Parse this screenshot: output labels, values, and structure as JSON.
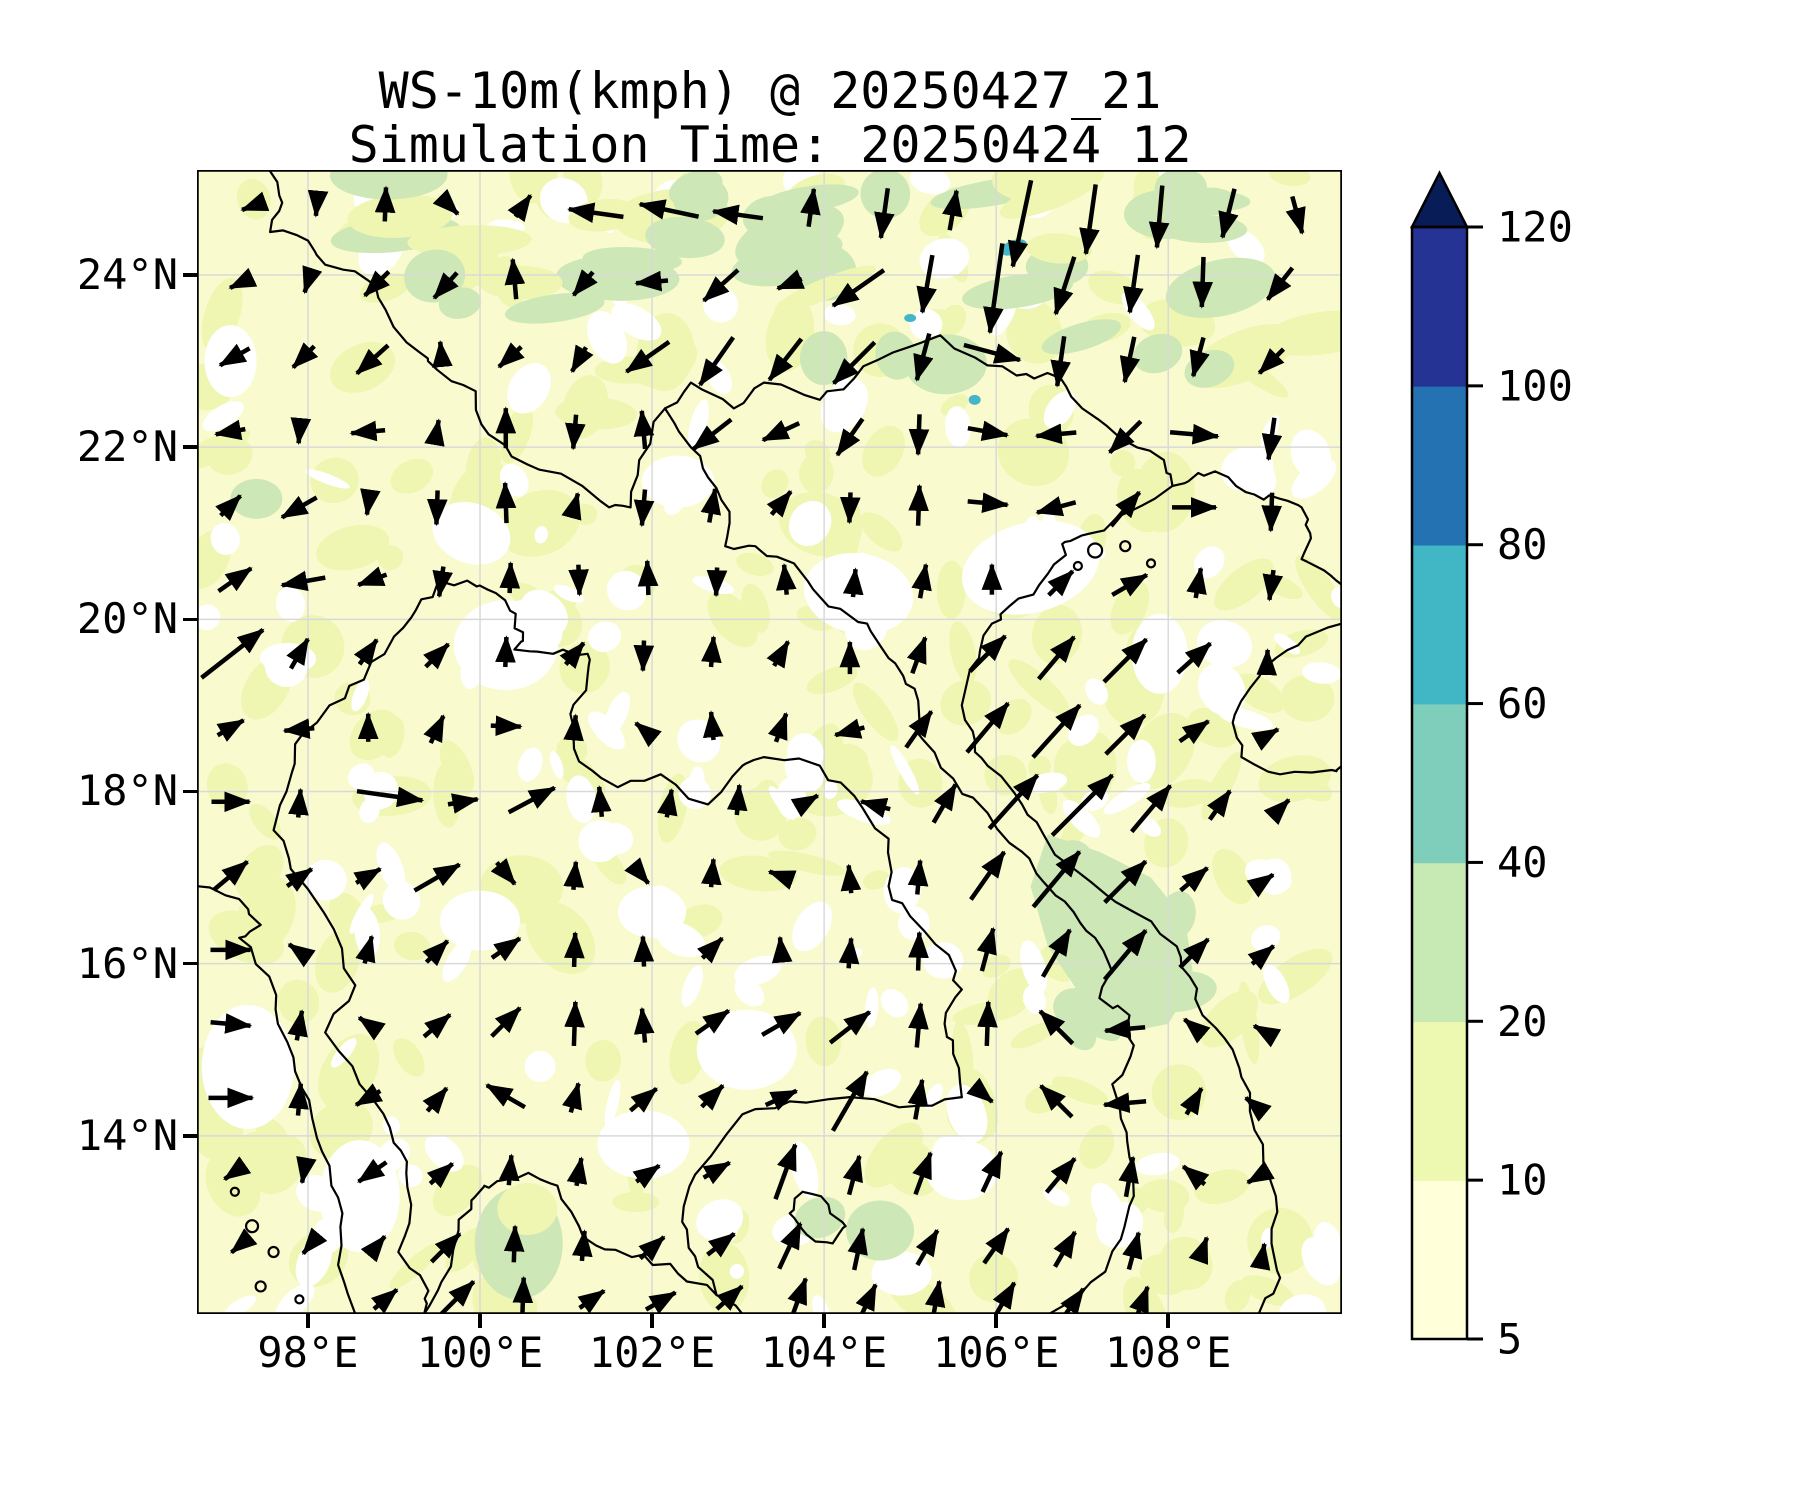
{
  "title": {
    "line1": "WS-10m(kmph) @ 20250427_21",
    "line2": "Simulation Time: 20250424_12"
  },
  "axes": {
    "x_ticks": [
      {
        "lon": 98,
        "label": "98°E"
      },
      {
        "lon": 100,
        "label": "100°E"
      },
      {
        "lon": 102,
        "label": "102°E"
      },
      {
        "lon": 104,
        "label": "104°E"
      },
      {
        "lon": 106,
        "label": "106°E"
      },
      {
        "lon": 108,
        "label": "108°E"
      }
    ],
    "y_ticks": [
      {
        "lat": 24,
        "label": "24°N"
      },
      {
        "lat": 22,
        "label": "22°N"
      },
      {
        "lat": 20,
        "label": "20°N"
      },
      {
        "lat": 18,
        "label": "18°N"
      },
      {
        "lat": 16,
        "label": "16°N"
      },
      {
        "lat": 14,
        "label": "14°N"
      }
    ]
  },
  "colorbar": {
    "tick_labels": [
      "5",
      "10",
      "20",
      "40",
      "60",
      "80",
      "100",
      "120"
    ],
    "levels": [
      5,
      10,
      20,
      40,
      60,
      80,
      100,
      120
    ],
    "segment_colors": [
      "#ffffd9",
      "#edf8b1",
      "#c7e9b4",
      "#7fcdbb",
      "#41b6c4",
      "#2472b2",
      "#253494"
    ],
    "extend_max_color": "#081d58"
  },
  "chart_data": {
    "type": "quiver_map",
    "variable": "WS-10m",
    "units": "kmph",
    "valid_time": "20250427_21",
    "simulation_time": "20250424_12",
    "title": "WS-10m(kmph) @ 20250427_21",
    "subtitle": "Simulation Time: 20250424_12",
    "lon_range": [
      96.71,
      110.02
    ],
    "lat_range": [
      11.93,
      25.22
    ],
    "grid": true,
    "fill_levels": [
      5,
      10,
      20,
      40,
      60,
      80,
      100,
      120
    ],
    "fill_colors": [
      "#ffffd9",
      "#edf8b1",
      "#c7e9b4",
      "#7fcdbb",
      "#41b6c4",
      "#2472b2",
      "#253494"
    ],
    "fill_palette": {
      "below_5": "#ffffff",
      "base_5_10": "#f9fbce",
      "tint_10_20": "#eef6b2",
      "green_20_40": "#cde7b6",
      "lake_cyan": "#45b5c8"
    },
    "arrow_color": "#000000",
    "border_color": "#000000",
    "grid_color": "#d9d9d9",
    "arrows_format": "[lon, lat, direction_deg(0=E,90=N,ccw), shaft_length_px]",
    "arrows": [
      [
        97.3,
        24.78,
        200,
        12
      ],
      [
        98.1,
        24.78,
        265,
        16
      ],
      [
        98.9,
        24.82,
        88,
        34
      ],
      [
        99.7,
        24.75,
        315,
        10
      ],
      [
        100.5,
        24.8,
        55,
        26
      ],
      [
        101.35,
        24.72,
        172,
        55
      ],
      [
        102.2,
        24.75,
        168,
        60
      ],
      [
        103.0,
        24.7,
        172,
        50
      ],
      [
        103.85,
        24.78,
        82,
        38
      ],
      [
        104.7,
        24.72,
        262,
        50
      ],
      [
        105.5,
        24.75,
        80,
        40
      ],
      [
        106.3,
        24.6,
        258,
        88
      ],
      [
        107.1,
        24.65,
        262,
        70
      ],
      [
        107.9,
        24.68,
        265,
        62
      ],
      [
        108.7,
        24.72,
        256,
        50
      ],
      [
        109.5,
        24.7,
        285,
        38
      ],
      [
        97.2,
        23.9,
        205,
        20
      ],
      [
        98.0,
        23.92,
        252,
        22
      ],
      [
        98.8,
        23.9,
        225,
        34
      ],
      [
        99.6,
        23.88,
        228,
        34
      ],
      [
        100.4,
        23.95,
        95,
        40
      ],
      [
        101.2,
        23.9,
        230,
        30
      ],
      [
        102.0,
        23.92,
        185,
        32
      ],
      [
        102.8,
        23.88,
        222,
        46
      ],
      [
        103.6,
        23.9,
        202,
        26
      ],
      [
        104.4,
        23.85,
        215,
        62
      ],
      [
        105.2,
        23.9,
        260,
        58
      ],
      [
        106.0,
        23.85,
        262,
        90
      ],
      [
        106.8,
        23.88,
        252,
        60
      ],
      [
        107.6,
        23.9,
        262,
        58
      ],
      [
        108.4,
        23.92,
        268,
        50
      ],
      [
        109.3,
        23.9,
        232,
        40
      ],
      [
        97.15,
        23.05,
        210,
        34
      ],
      [
        97.95,
        23.05,
        225,
        30
      ],
      [
        98.75,
        23.02,
        222,
        42
      ],
      [
        99.55,
        23.08,
        95,
        25
      ],
      [
        100.35,
        23.05,
        222,
        30
      ],
      [
        101.15,
        23.02,
        240,
        28
      ],
      [
        101.95,
        23.05,
        215,
        52
      ],
      [
        102.75,
        23.0,
        235,
        58
      ],
      [
        103.55,
        23.02,
        232,
        52
      ],
      [
        104.35,
        22.98,
        225,
        58
      ],
      [
        105.15,
        23.05,
        255,
        48
      ],
      [
        105.95,
        23.1,
        345,
        58
      ],
      [
        106.75,
        23.0,
        262,
        50
      ],
      [
        107.55,
        23.02,
        258,
        46
      ],
      [
        108.35,
        23.05,
        255,
        40
      ],
      [
        109.2,
        23.0,
        225,
        34
      ],
      [
        97.1,
        22.18,
        190,
        30
      ],
      [
        97.9,
        22.15,
        265,
        18
      ],
      [
        98.7,
        22.18,
        185,
        34
      ],
      [
        99.5,
        22.2,
        80,
        20
      ],
      [
        100.3,
        22.22,
        90,
        40
      ],
      [
        101.1,
        22.18,
        265,
        34
      ],
      [
        101.9,
        22.2,
        95,
        38
      ],
      [
        102.7,
        22.15,
        218,
        48
      ],
      [
        103.5,
        22.18,
        205,
        40
      ],
      [
        104.3,
        22.12,
        235,
        44
      ],
      [
        105.1,
        22.15,
        268,
        40
      ],
      [
        105.9,
        22.18,
        350,
        40
      ],
      [
        106.7,
        22.15,
        185,
        40
      ],
      [
        107.5,
        22.12,
        225,
        44
      ],
      [
        108.3,
        22.15,
        355,
        48
      ],
      [
        109.2,
        22.1,
        262,
        42
      ],
      [
        97.1,
        21.32,
        45,
        28
      ],
      [
        97.9,
        21.3,
        210,
        40
      ],
      [
        98.7,
        21.32,
        262,
        18
      ],
      [
        99.5,
        21.3,
        268,
        34
      ],
      [
        100.3,
        21.35,
        92,
        40
      ],
      [
        101.1,
        21.32,
        75,
        25
      ],
      [
        101.9,
        21.3,
        265,
        36
      ],
      [
        102.7,
        21.32,
        80,
        34
      ],
      [
        103.5,
        21.35,
        50,
        30
      ],
      [
        104.3,
        21.3,
        268,
        30
      ],
      [
        105.1,
        21.32,
        88,
        40
      ],
      [
        105.9,
        21.35,
        355,
        40
      ],
      [
        106.7,
        21.3,
        195,
        40
      ],
      [
        107.5,
        21.28,
        50,
        44
      ],
      [
        108.3,
        21.3,
        0,
        44
      ],
      [
        109.2,
        21.25,
        268,
        38
      ],
      [
        97.15,
        20.46,
        35,
        40
      ],
      [
        97.95,
        20.44,
        190,
        44
      ],
      [
        98.75,
        20.46,
        200,
        30
      ],
      [
        99.55,
        20.44,
        262,
        30
      ],
      [
        100.35,
        20.48,
        88,
        30
      ],
      [
        101.15,
        20.46,
        272,
        30
      ],
      [
        101.95,
        20.48,
        92,
        34
      ],
      [
        102.75,
        20.44,
        268,
        28
      ],
      [
        103.55,
        20.46,
        95,
        30
      ],
      [
        104.35,
        20.42,
        85,
        28
      ],
      [
        105.15,
        20.44,
        80,
        34
      ],
      [
        105.95,
        20.46,
        90,
        30
      ],
      [
        106.75,
        20.42,
        45,
        34
      ],
      [
        107.55,
        20.4,
        30,
        40
      ],
      [
        108.35,
        20.42,
        80,
        30
      ],
      [
        109.2,
        20.4,
        262,
        30
      ],
      [
        97.12,
        19.6,
        38,
        78
      ],
      [
        97.9,
        19.6,
        60,
        34
      ],
      [
        98.7,
        19.62,
        55,
        30
      ],
      [
        99.5,
        19.58,
        45,
        32
      ],
      [
        100.3,
        19.62,
        88,
        30
      ],
      [
        101.1,
        19.6,
        50,
        28
      ],
      [
        101.9,
        19.58,
        268,
        30
      ],
      [
        102.7,
        19.62,
        85,
        30
      ],
      [
        103.5,
        19.6,
        60,
        28
      ],
      [
        104.3,
        19.55,
        90,
        32
      ],
      [
        105.1,
        19.58,
        70,
        38
      ],
      [
        105.9,
        19.6,
        45,
        50
      ],
      [
        106.7,
        19.55,
        50,
        55
      ],
      [
        107.5,
        19.52,
        45,
        60
      ],
      [
        108.3,
        19.55,
        42,
        44
      ],
      [
        109.15,
        19.5,
        88,
        25
      ],
      [
        97.1,
        18.74,
        30,
        30
      ],
      [
        97.9,
        18.72,
        185,
        30
      ],
      [
        98.7,
        18.74,
        90,
        28
      ],
      [
        99.5,
        18.72,
        65,
        30
      ],
      [
        100.3,
        18.76,
        358,
        30
      ],
      [
        101.1,
        18.74,
        85,
        25
      ],
      [
        101.9,
        18.72,
        140,
        20
      ],
      [
        102.7,
        18.76,
        95,
        28
      ],
      [
        103.5,
        18.74,
        70,
        30
      ],
      [
        104.3,
        18.7,
        195,
        30
      ],
      [
        105.1,
        18.72,
        55,
        44
      ],
      [
        105.9,
        18.74,
        50,
        64
      ],
      [
        106.7,
        18.7,
        48,
        70
      ],
      [
        107.5,
        18.66,
        45,
        55
      ],
      [
        108.3,
        18.7,
        35,
        35
      ],
      [
        109.15,
        18.65,
        30,
        25
      ],
      [
        97.1,
        17.88,
        0,
        38
      ],
      [
        97.9,
        17.86,
        85,
        28
      ],
      [
        98.95,
        17.95,
        352,
        66
      ],
      [
        99.8,
        17.88,
        10,
        30
      ],
      [
        100.6,
        17.9,
        28,
        52
      ],
      [
        101.4,
        17.88,
        95,
        30
      ],
      [
        102.2,
        17.86,
        80,
        28
      ],
      [
        103.0,
        17.9,
        85,
        30
      ],
      [
        103.8,
        17.88,
        30,
        25
      ],
      [
        104.6,
        17.84,
        165,
        30
      ],
      [
        105.4,
        17.86,
        60,
        44
      ],
      [
        106.2,
        17.88,
        48,
        72
      ],
      [
        107.0,
        17.84,
        45,
        85
      ],
      [
        107.8,
        17.8,
        50,
        60
      ],
      [
        108.6,
        17.84,
        55,
        35
      ],
      [
        109.3,
        17.8,
        45,
        25
      ],
      [
        97.1,
        17.02,
        40,
        44
      ],
      [
        97.9,
        17.0,
        35,
        30
      ],
      [
        98.7,
        17.02,
        30,
        28
      ],
      [
        99.5,
        17.0,
        30,
        52
      ],
      [
        100.3,
        17.05,
        310,
        28
      ],
      [
        101.1,
        17.02,
        85,
        28
      ],
      [
        101.9,
        17.0,
        310,
        15
      ],
      [
        102.7,
        17.05,
        85,
        28
      ],
      [
        103.5,
        17.02,
        160,
        25
      ],
      [
        104.3,
        16.98,
        95,
        28
      ],
      [
        105.1,
        17.0,
        85,
        34
      ],
      [
        105.9,
        17.02,
        55,
        58
      ],
      [
        106.7,
        16.98,
        50,
        72
      ],
      [
        107.5,
        16.95,
        45,
        58
      ],
      [
        108.3,
        16.98,
        40,
        35
      ],
      [
        109.1,
        16.95,
        35,
        25
      ],
      [
        97.1,
        16.16,
        0,
        40
      ],
      [
        97.9,
        16.14,
        145,
        25
      ],
      [
        98.7,
        16.16,
        75,
        28
      ],
      [
        99.5,
        16.14,
        45,
        30
      ],
      [
        100.3,
        16.18,
        35,
        34
      ],
      [
        101.1,
        16.16,
        88,
        34
      ],
      [
        101.9,
        16.14,
        92,
        30
      ],
      [
        102.7,
        16.18,
        45,
        28
      ],
      [
        103.5,
        16.16,
        95,
        25
      ],
      [
        104.3,
        16.12,
        85,
        30
      ],
      [
        105.1,
        16.14,
        88,
        38
      ],
      [
        105.9,
        16.16,
        75,
        44
      ],
      [
        106.7,
        16.12,
        60,
        54
      ],
      [
        107.5,
        16.1,
        50,
        64
      ],
      [
        108.3,
        16.12,
        45,
        40
      ],
      [
        109.1,
        16.1,
        40,
        28
      ],
      [
        97.1,
        15.3,
        355,
        40
      ],
      [
        97.9,
        15.28,
        80,
        30
      ],
      [
        98.7,
        15.3,
        145,
        22
      ],
      [
        99.5,
        15.28,
        40,
        34
      ],
      [
        100.3,
        15.32,
        45,
        40
      ],
      [
        101.1,
        15.3,
        88,
        44
      ],
      [
        101.9,
        15.28,
        95,
        34
      ],
      [
        102.7,
        15.32,
        35,
        40
      ],
      [
        103.5,
        15.3,
        30,
        44
      ],
      [
        104.3,
        15.26,
        38,
        50
      ],
      [
        105.1,
        15.28,
        85,
        44
      ],
      [
        105.9,
        15.3,
        88,
        44
      ],
      [
        106.7,
        15.26,
        135,
        46
      ],
      [
        107.5,
        15.24,
        185,
        40
      ],
      [
        108.3,
        15.26,
        140,
        25
      ],
      [
        109.1,
        15.22,
        150,
        20
      ],
      [
        97.1,
        14.44,
        0,
        44
      ],
      [
        97.9,
        14.42,
        85,
        32
      ],
      [
        98.7,
        14.44,
        210,
        28
      ],
      [
        99.5,
        14.42,
        50,
        30
      ],
      [
        100.3,
        14.46,
        150,
        44
      ],
      [
        101.1,
        14.44,
        75,
        30
      ],
      [
        101.9,
        14.42,
        40,
        34
      ],
      [
        102.7,
        14.46,
        45,
        30
      ],
      [
        103.5,
        14.44,
        25,
        34
      ],
      [
        104.3,
        14.4,
        60,
        68
      ],
      [
        105.1,
        14.42,
        80,
        40
      ],
      [
        105.9,
        14.44,
        320,
        12
      ],
      [
        106.7,
        14.4,
        135,
        44
      ],
      [
        107.5,
        14.38,
        185,
        42
      ],
      [
        108.3,
        14.4,
        60,
        30
      ],
      [
        109.0,
        14.36,
        140,
        22
      ],
      [
        97.15,
        13.58,
        215,
        25
      ],
      [
        97.95,
        13.56,
        260,
        18
      ],
      [
        98.75,
        13.58,
        215,
        34
      ],
      [
        99.55,
        13.56,
        42,
        30
      ],
      [
        100.35,
        13.6,
        85,
        30
      ],
      [
        101.15,
        13.58,
        80,
        28
      ],
      [
        101.95,
        13.56,
        35,
        28
      ],
      [
        102.75,
        13.6,
        30,
        30
      ],
      [
        103.55,
        13.58,
        70,
        58
      ],
      [
        104.35,
        13.54,
        75,
        40
      ],
      [
        105.15,
        13.56,
        70,
        44
      ],
      [
        105.95,
        13.58,
        65,
        44
      ],
      [
        106.75,
        13.54,
        50,
        44
      ],
      [
        107.55,
        13.52,
        80,
        40
      ],
      [
        108.3,
        13.54,
        140,
        28
      ],
      [
        109.0,
        13.5,
        210,
        15
      ],
      [
        97.2,
        12.72,
        220,
        20
      ],
      [
        98.0,
        12.7,
        230,
        15
      ],
      [
        98.8,
        12.72,
        50,
        25
      ],
      [
        99.6,
        12.7,
        45,
        40
      ],
      [
        100.4,
        12.74,
        88,
        36
      ],
      [
        101.2,
        12.72,
        85,
        30
      ],
      [
        102.0,
        12.7,
        42,
        32
      ],
      [
        102.8,
        12.74,
        38,
        34
      ],
      [
        103.6,
        12.72,
        65,
        50
      ],
      [
        104.4,
        12.68,
        78,
        42
      ],
      [
        105.2,
        12.7,
        60,
        40
      ],
      [
        106.0,
        12.72,
        55,
        42
      ],
      [
        106.8,
        12.68,
        60,
        40
      ],
      [
        107.6,
        12.66,
        75,
        38
      ],
      [
        108.4,
        12.68,
        70,
        25
      ],
      [
        109.1,
        12.64,
        80,
        18
      ],
      [
        98.9,
        12.1,
        40,
        30
      ],
      [
        99.7,
        12.08,
        45,
        55
      ],
      [
        100.5,
        12.12,
        88,
        40
      ],
      [
        101.3,
        12.1,
        35,
        30
      ],
      [
        102.1,
        12.08,
        30,
        34
      ],
      [
        102.9,
        12.12,
        42,
        34
      ],
      [
        103.7,
        12.1,
        70,
        44
      ],
      [
        104.5,
        12.06,
        65,
        40
      ],
      [
        105.3,
        12.08,
        80,
        40
      ],
      [
        106.1,
        12.1,
        60,
        38
      ],
      [
        106.9,
        12.06,
        55,
        34
      ],
      [
        107.7,
        12.08,
        70,
        30
      ]
    ]
  }
}
